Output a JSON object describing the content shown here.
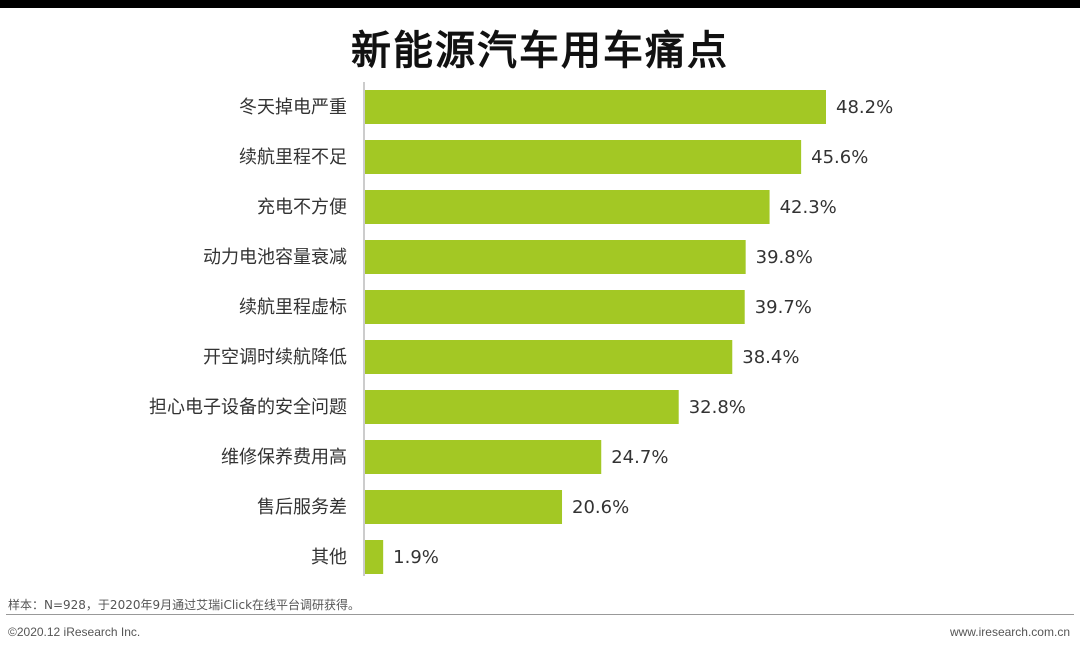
{
  "chart_data": {
    "type": "bar",
    "orientation": "horizontal",
    "title": "新能源汽车用车痛点",
    "categories": [
      "冬天掉电严重",
      "续航里程不足",
      "充电不方便",
      "动力电池容量衰减",
      "续航里程虚标",
      "开空调时续航降低",
      "担心电子设备的安全问题",
      "维修保养费用高",
      "售后服务差",
      "其他"
    ],
    "values": [
      48.2,
      45.6,
      42.3,
      39.8,
      39.7,
      38.4,
      32.8,
      24.7,
      20.6,
      1.9
    ],
    "value_labels": [
      "48.2%",
      "45.6%",
      "42.3%",
      "39.8%",
      "39.7%",
      "38.4%",
      "32.8%",
      "24.7%",
      "20.6%",
      "1.9%"
    ],
    "unit": "%",
    "bar_color": "#A3C824",
    "xlim": [
      0,
      48.2
    ],
    "grid": false,
    "legend": "none"
  },
  "footer": {
    "note": "样本：N=928，于2020年9月通过艾瑞iClick在线平台调研获得。",
    "copyright": "©2020.12 iResearch Inc.",
    "website": "www.iresearch.com.cn"
  }
}
